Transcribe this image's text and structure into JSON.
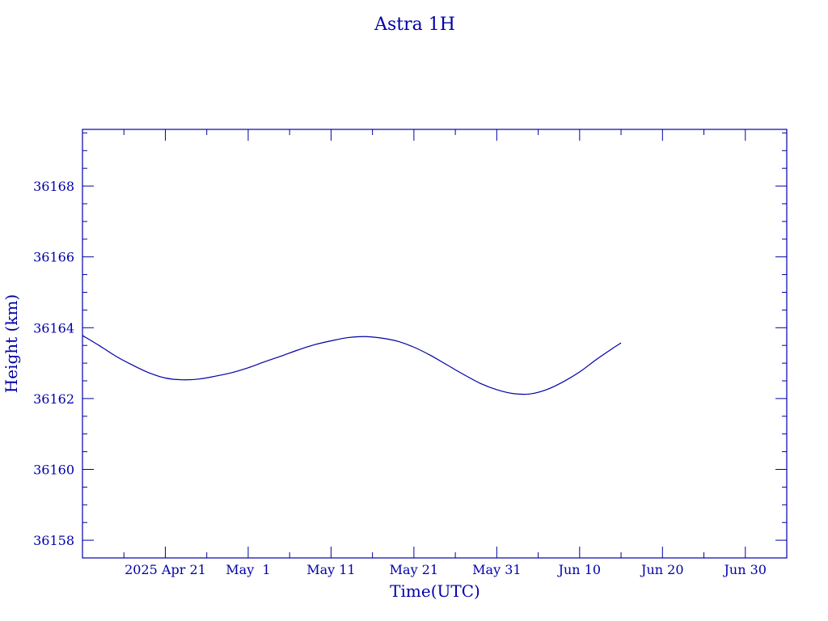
{
  "chart_data": {
    "type": "line",
    "title": "Astra 1H",
    "xlabel": "Time(UTC)",
    "ylabel": "Height (km)",
    "x_type": "date",
    "xlim": [
      "2025-04-11",
      "2025-07-05"
    ],
    "ylim": [
      36157.5,
      36169.6
    ],
    "x_ticks": [
      {
        "date": "2025-04-21",
        "label": "2025 Apr 21"
      },
      {
        "date": "2025-05-01",
        "label": "May  1"
      },
      {
        "date": "2025-05-11",
        "label": "May 11"
      },
      {
        "date": "2025-05-21",
        "label": "May 21"
      },
      {
        "date": "2025-05-31",
        "label": "May 31"
      },
      {
        "date": "2025-06-10",
        "label": "Jun 10"
      },
      {
        "date": "2025-06-20",
        "label": "Jun 20"
      },
      {
        "date": "2025-06-30",
        "label": "Jun 30"
      }
    ],
    "y_ticks": [
      36158,
      36160,
      36162,
      36164,
      36166,
      36168
    ],
    "y_minor_step": 0.5,
    "x_minor_step_days": 5,
    "grid": false,
    "series": [
      {
        "color": "#0000a8",
        "points": [
          {
            "x": "2025-04-11",
            "y": 36163.78
          },
          {
            "x": "2025-04-13",
            "y": 36163.5
          },
          {
            "x": "2025-04-15",
            "y": 36163.2
          },
          {
            "x": "2025-04-17",
            "y": 36162.95
          },
          {
            "x": "2025-04-19",
            "y": 36162.73
          },
          {
            "x": "2025-04-21",
            "y": 36162.58
          },
          {
            "x": "2025-04-23",
            "y": 36162.53
          },
          {
            "x": "2025-04-25",
            "y": 36162.55
          },
          {
            "x": "2025-04-27",
            "y": 36162.63
          },
          {
            "x": "2025-04-29",
            "y": 36162.73
          },
          {
            "x": "2025-05-01",
            "y": 36162.87
          },
          {
            "x": "2025-05-03",
            "y": 36163.04
          },
          {
            "x": "2025-05-05",
            "y": 36163.2
          },
          {
            "x": "2025-05-07",
            "y": 36163.37
          },
          {
            "x": "2025-05-09",
            "y": 36163.52
          },
          {
            "x": "2025-05-11",
            "y": 36163.63
          },
          {
            "x": "2025-05-13",
            "y": 36163.72
          },
          {
            "x": "2025-05-15",
            "y": 36163.75
          },
          {
            "x": "2025-05-17",
            "y": 36163.71
          },
          {
            "x": "2025-05-19",
            "y": 36163.62
          },
          {
            "x": "2025-05-21",
            "y": 36163.45
          },
          {
            "x": "2025-05-23",
            "y": 36163.22
          },
          {
            "x": "2025-05-25",
            "y": 36162.95
          },
          {
            "x": "2025-05-27",
            "y": 36162.68
          },
          {
            "x": "2025-05-29",
            "y": 36162.43
          },
          {
            "x": "2025-05-31",
            "y": 36162.25
          },
          {
            "x": "2025-06-02",
            "y": 36162.14
          },
          {
            "x": "2025-06-04",
            "y": 36162.13
          },
          {
            "x": "2025-06-06",
            "y": 36162.25
          },
          {
            "x": "2025-06-08",
            "y": 36162.47
          },
          {
            "x": "2025-06-10",
            "y": 36162.75
          },
          {
            "x": "2025-06-12",
            "y": 36163.1
          },
          {
            "x": "2025-06-14",
            "y": 36163.42
          },
          {
            "x": "2025-06-15",
            "y": 36163.57
          }
        ]
      }
    ]
  }
}
